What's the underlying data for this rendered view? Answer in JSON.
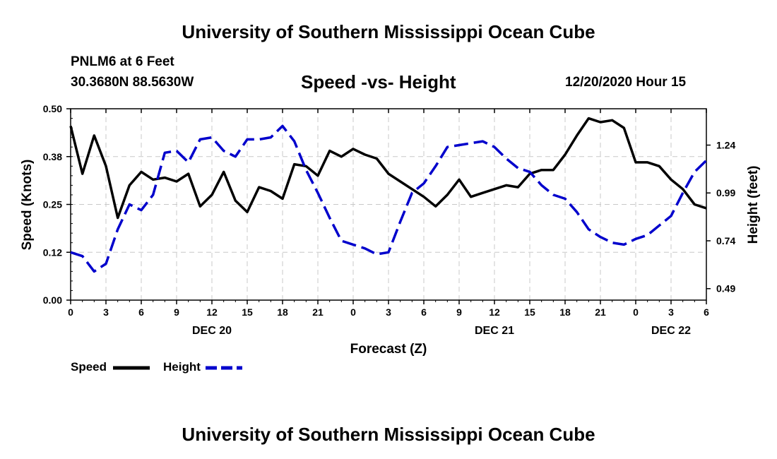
{
  "header": {
    "title": "University of Southern Mississippi Ocean Cube",
    "station": "PNLM6 at 6 Feet",
    "coordinates": "30.3680N 88.5630W",
    "subtitle": "Speed -vs- Height",
    "datetime": "12/20/2020 Hour 15"
  },
  "footer": {
    "title": "University of Southern Mississippi Ocean Cube"
  },
  "legend": {
    "speed_label": "Speed",
    "height_label": "Height"
  },
  "colors": {
    "speed": "#000000",
    "height": "#0000cc",
    "grid": "#c8c8c8"
  },
  "chart_data": {
    "type": "line",
    "title": "Speed -vs- Height",
    "xlabel": "Forecast (Z)",
    "ylabel": "Speed (Knots)",
    "y2label": "Height (feet)",
    "x_unit": "hours from 12/20 00Z",
    "xlim": [
      0,
      54
    ],
    "ylim": [
      0,
      0.5
    ],
    "y2lim": [
      0.43,
      1.43
    ],
    "x_tick_values": [
      0,
      3,
      6,
      9,
      12,
      15,
      18,
      21,
      24,
      27,
      30,
      33,
      36,
      39,
      42,
      45,
      48,
      51,
      54
    ],
    "x_tick_labels": [
      "0",
      "3",
      "6",
      "9",
      "12",
      "15",
      "18",
      "21",
      "0",
      "3",
      "6",
      "9",
      "12",
      "15",
      "18",
      "21",
      "0",
      "3",
      "6"
    ],
    "date_labels": [
      {
        "x": 12,
        "label": "DEC 20"
      },
      {
        "x": 36,
        "label": "DEC 21"
      },
      {
        "x": 51,
        "label": "DEC 22"
      }
    ],
    "y_tick_values": [
      0,
      0.125,
      0.25,
      0.375,
      0.5
    ],
    "y_tick_labels": [
      "0.00",
      "0.12",
      "0.25",
      "0.38",
      "0.50"
    ],
    "y2_tick_values": [
      0.49,
      0.74,
      0.99,
      1.24
    ],
    "y2_tick_labels": [
      "0.49",
      "0.74",
      "0.99",
      "1.24"
    ],
    "series": [
      {
        "name": "Speed",
        "axis": "left",
        "x": [
          0,
          1,
          2,
          3,
          4,
          5,
          6,
          7,
          8,
          9,
          10,
          11,
          12,
          13,
          14,
          15,
          16,
          17,
          18,
          19,
          20,
          21,
          22,
          23,
          24,
          25,
          26,
          27,
          28,
          29,
          30,
          31,
          32,
          33,
          34,
          35,
          36,
          37,
          38,
          39,
          40,
          41,
          42,
          43,
          44,
          45,
          46,
          47,
          48,
          49,
          50,
          51,
          52,
          53,
          54
        ],
        "values": [
          0.455,
          0.33,
          0.43,
          0.35,
          0.215,
          0.3,
          0.335,
          0.315,
          0.32,
          0.31,
          0.33,
          0.245,
          0.275,
          0.335,
          0.26,
          0.23,
          0.295,
          0.285,
          0.265,
          0.355,
          0.35,
          0.325,
          0.39,
          0.375,
          0.395,
          0.38,
          0.37,
          0.33,
          0.31,
          0.29,
          0.27,
          0.245,
          0.275,
          0.315,
          0.27,
          0.28,
          0.29,
          0.3,
          0.295,
          0.33,
          0.34,
          0.34,
          0.38,
          0.43,
          0.475,
          0.465,
          0.47,
          0.45,
          0.36,
          0.36,
          0.35,
          0.315,
          0.29,
          0.25,
          0.24
        ]
      },
      {
        "name": "Height",
        "axis": "right",
        "x": [
          0,
          1,
          2,
          3,
          4,
          5,
          6,
          7,
          8,
          9,
          10,
          11,
          12,
          13,
          14,
          15,
          16,
          17,
          18,
          19,
          20,
          21,
          22,
          23,
          24,
          25,
          26,
          27,
          28,
          29,
          30,
          31,
          32,
          33,
          34,
          35,
          36,
          37,
          38,
          39,
          40,
          41,
          42,
          43,
          44,
          45,
          46,
          47,
          48,
          49,
          50,
          51,
          52,
          53,
          54
        ],
        "values": [
          0.68,
          0.66,
          0.58,
          0.62,
          0.8,
          0.93,
          0.9,
          0.98,
          1.2,
          1.21,
          1.15,
          1.27,
          1.28,
          1.21,
          1.18,
          1.27,
          1.27,
          1.28,
          1.34,
          1.26,
          1.11,
          0.99,
          0.86,
          0.74,
          0.72,
          0.7,
          0.67,
          0.68,
          0.84,
          0.99,
          1.04,
          1.13,
          1.23,
          1.24,
          1.25,
          1.26,
          1.23,
          1.17,
          1.12,
          1.1,
          1.03,
          0.98,
          0.96,
          0.89,
          0.8,
          0.76,
          0.73,
          0.72,
          0.75,
          0.77,
          0.82,
          0.87,
          0.99,
          1.1,
          1.16
        ]
      }
    ]
  }
}
